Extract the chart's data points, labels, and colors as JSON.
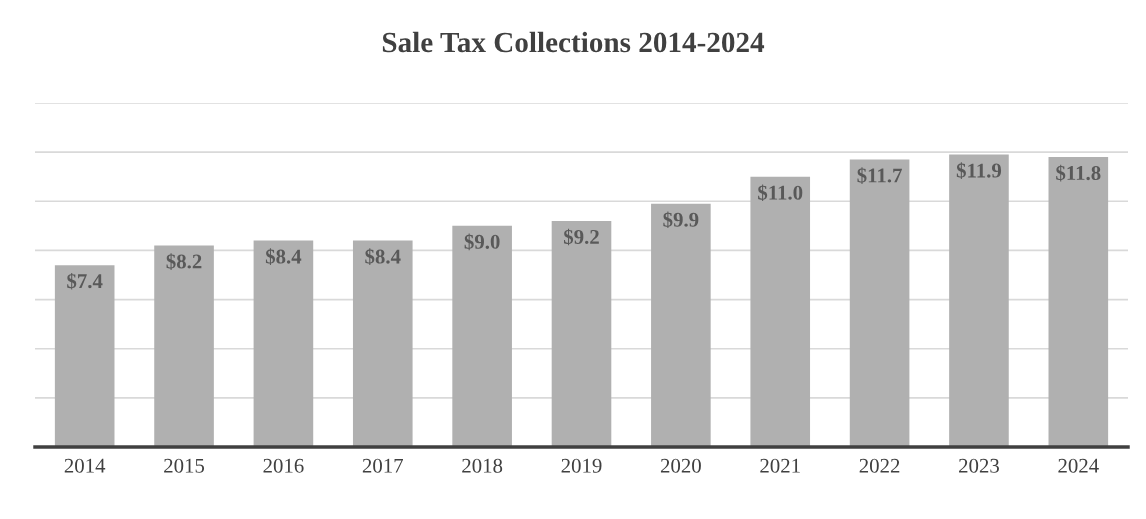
{
  "chart_data": {
    "type": "bar",
    "title": "Sale Tax Collections 2014-2024",
    "categories": [
      "2014",
      "2015",
      "2016",
      "2017",
      "2018",
      "2019",
      "2020",
      "2021",
      "2022",
      "2023",
      "2024"
    ],
    "values": [
      7.4,
      8.2,
      8.4,
      8.4,
      9.0,
      9.2,
      9.9,
      11.0,
      11.7,
      11.9,
      11.8
    ],
    "value_labels": [
      "$7.4",
      "$8.2",
      "$8.4",
      "$8.4",
      "$9.0",
      "$9.2",
      "$9.9",
      "$11.0",
      "$11.7",
      "$11.9",
      "$11.8"
    ],
    "color": "#b0b0b0",
    "ylim": [
      0,
      14
    ],
    "yticks": [
      {
        "value": 2,
        "label": null
      },
      {
        "value": 4,
        "label": null
      },
      {
        "value": 6,
        "label": null
      },
      {
        "value": 8,
        "label": null
      },
      {
        "value": 10,
        "label": null
      },
      {
        "value": 12,
        "label": null
      },
      {
        "value": 14,
        "label": null
      }
    ],
    "tick_labels": "x",
    "grid": "y"
  }
}
